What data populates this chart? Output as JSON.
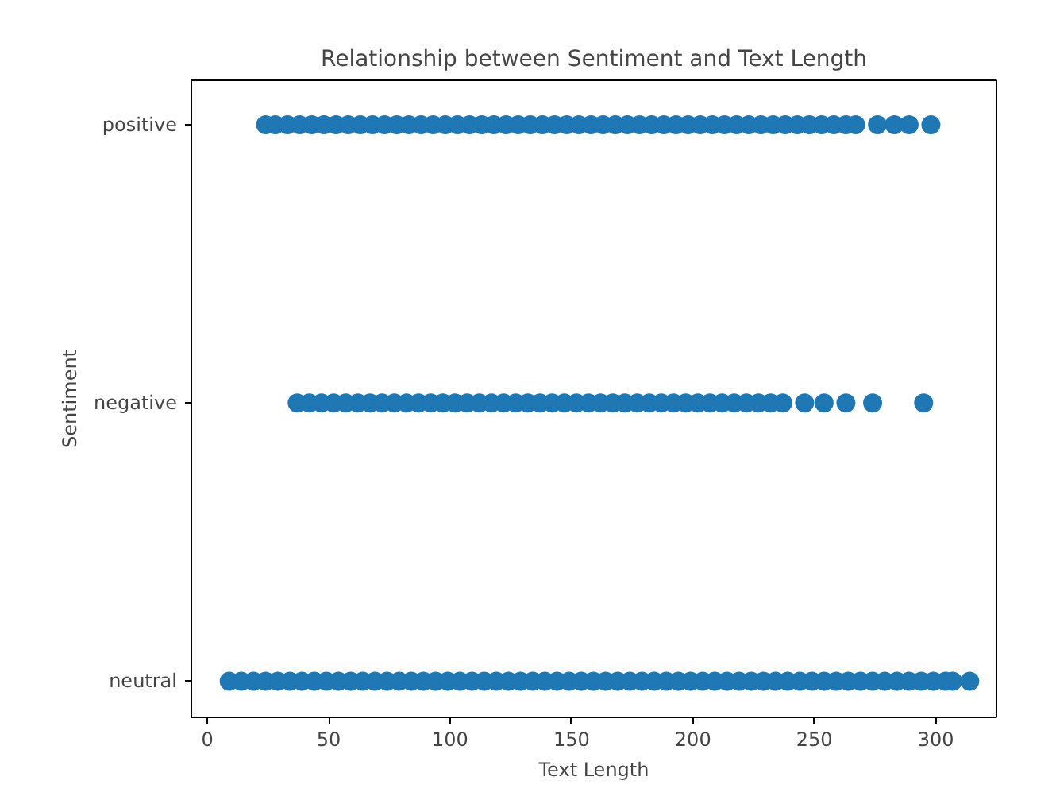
{
  "chart_data": {
    "type": "scatter",
    "title": "Relationship between Sentiment and Text Length",
    "xlabel": "Text Length",
    "ylabel": "Sentiment",
    "orientation": "horizontal",
    "categories": [
      "positive",
      "negative",
      "neutral"
    ],
    "xlim": [
      -6.6,
      325
    ],
    "xticks": [
      0,
      50,
      100,
      150,
      200,
      250,
      300
    ],
    "marker": "circle",
    "grid": false,
    "series": [
      {
        "color": "#1f77b4",
        "x": [
          "positive",
          "positive",
          "positive",
          "positive",
          "positive",
          "positive",
          "positive",
          "positive",
          "positive",
          "positive",
          "positive",
          "positive",
          "positive",
          "positive",
          "positive",
          "positive",
          "positive",
          "positive",
          "positive",
          "positive",
          "positive",
          "positive",
          "positive",
          "positive",
          "positive",
          "positive",
          "positive",
          "positive",
          "positive",
          "positive",
          "positive",
          "positive",
          "positive",
          "positive",
          "positive",
          "positive",
          "positive",
          "positive",
          "positive",
          "positive",
          "positive",
          "positive",
          "positive",
          "positive",
          "positive",
          "positive",
          "positive",
          "positive",
          "positive",
          "positive",
          "positive",
          "positive",
          "positive",
          "positive"
        ],
        "values": [
          24,
          28,
          33,
          38,
          43,
          48,
          53,
          58,
          63,
          68,
          73,
          78,
          83,
          88,
          93,
          98,
          103,
          108,
          113,
          118,
          123,
          128,
          133,
          138,
          143,
          148,
          153,
          158,
          163,
          168,
          173,
          178,
          183,
          188,
          193,
          198,
          203,
          208,
          213,
          218,
          223,
          228,
          233,
          238,
          243,
          248,
          253,
          258,
          263,
          267,
          276,
          283,
          289,
          298
        ]
      },
      {
        "color": "#1f77b4",
        "x": [
          "negative",
          "negative",
          "negative",
          "negative",
          "negative",
          "negative",
          "negative",
          "negative",
          "negative",
          "negative",
          "negative",
          "negative",
          "negative",
          "negative",
          "negative",
          "negative",
          "negative",
          "negative",
          "negative",
          "negative",
          "negative",
          "negative",
          "negative",
          "negative",
          "negative",
          "negative",
          "negative",
          "negative",
          "negative",
          "negative",
          "negative",
          "negative",
          "negative",
          "negative",
          "negative",
          "negative",
          "negative",
          "negative",
          "negative",
          "negative",
          "negative",
          "negative",
          "negative",
          "negative",
          "negative",
          "negative"
        ],
        "values": [
          37,
          42,
          47,
          52,
          57,
          62,
          67,
          72,
          77,
          82,
          87,
          92,
          97,
          102,
          107,
          112,
          117,
          122,
          127,
          132,
          137,
          142,
          147,
          152,
          157,
          162,
          167,
          172,
          177,
          182,
          187,
          192,
          197,
          202,
          207,
          212,
          217,
          222,
          227,
          232,
          237,
          246,
          254,
          263,
          274,
          295
        ]
      },
      {
        "color": "#1f77b4",
        "x": [
          "neutral",
          "neutral",
          "neutral",
          "neutral",
          "neutral",
          "neutral",
          "neutral",
          "neutral",
          "neutral",
          "neutral",
          "neutral",
          "neutral",
          "neutral",
          "neutral",
          "neutral",
          "neutral",
          "neutral",
          "neutral",
          "neutral",
          "neutral",
          "neutral",
          "neutral",
          "neutral",
          "neutral",
          "neutral",
          "neutral",
          "neutral",
          "neutral",
          "neutral",
          "neutral",
          "neutral",
          "neutral",
          "neutral",
          "neutral",
          "neutral",
          "neutral",
          "neutral",
          "neutral",
          "neutral",
          "neutral",
          "neutral",
          "neutral",
          "neutral",
          "neutral",
          "neutral",
          "neutral",
          "neutral",
          "neutral",
          "neutral",
          "neutral",
          "neutral",
          "neutral",
          "neutral",
          "neutral",
          "neutral",
          "neutral",
          "neutral",
          "neutral",
          "neutral",
          "neutral",
          "neutral",
          "neutral"
        ],
        "values": [
          9,
          14,
          19,
          24,
          29,
          34,
          39,
          44,
          49,
          54,
          59,
          64,
          69,
          74,
          79,
          84,
          89,
          94,
          99,
          104,
          109,
          114,
          119,
          124,
          129,
          134,
          139,
          144,
          149,
          154,
          159,
          164,
          169,
          174,
          179,
          184,
          189,
          194,
          199,
          204,
          209,
          214,
          219,
          224,
          229,
          234,
          239,
          244,
          249,
          254,
          259,
          264,
          269,
          274,
          279,
          284,
          289,
          294,
          299,
          304,
          307,
          314
        ]
      }
    ]
  }
}
